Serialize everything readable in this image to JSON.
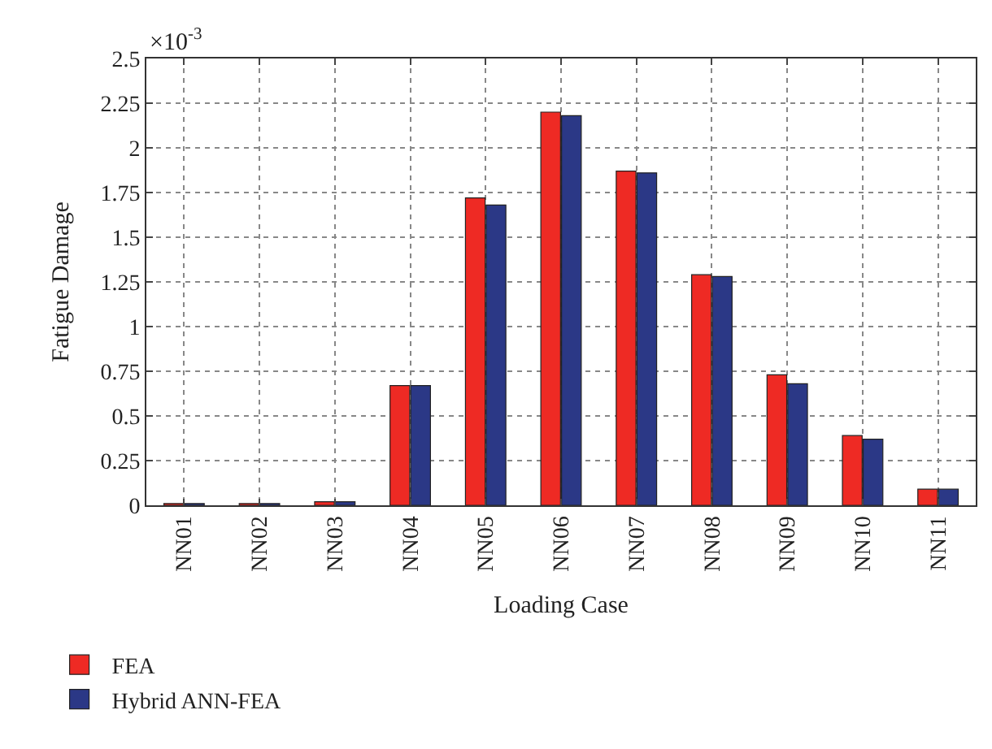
{
  "chart_data": {
    "type": "bar",
    "categories": [
      "NN01",
      "NN02",
      "NN03",
      "NN04",
      "NN05",
      "NN06",
      "NN07",
      "NN08",
      "NN09",
      "NN10",
      "NN11"
    ],
    "series": [
      {
        "name": "FEA",
        "color": "#ee2a24",
        "values": [
          0.01,
          0.01,
          0.02,
          0.67,
          1.72,
          2.2,
          1.87,
          1.29,
          0.73,
          0.39,
          0.09
        ]
      },
      {
        "name": "Hybrid ANN-FEA",
        "color": "#2b3886",
        "values": [
          0.01,
          0.01,
          0.02,
          0.67,
          1.68,
          2.18,
          1.86,
          1.28,
          0.68,
          0.37,
          0.09
        ]
      }
    ],
    "xlabel": "Loading Case",
    "ylabel": "Fatigue Damage",
    "annotations": [
      "×10$^{-3}$"
    ],
    "ylim": [
      0,
      2.5
    ],
    "yticks": [
      0,
      0.25,
      0.5,
      0.75,
      1,
      1.25,
      1.5,
      1.75,
      2,
      2.25,
      2.5
    ],
    "grid": true,
    "legend": "bottom left"
  }
}
